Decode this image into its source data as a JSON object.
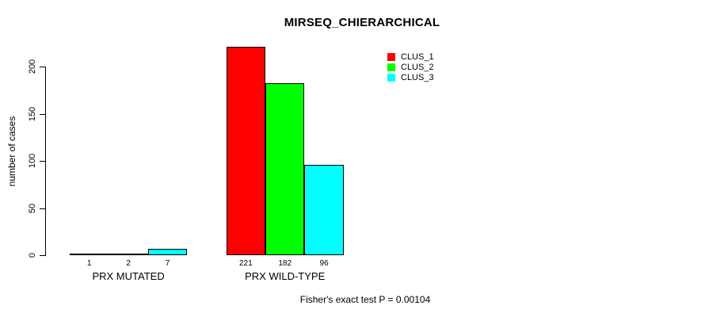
{
  "chart_data": {
    "type": "bar",
    "title": "MIRSEQ_CHIERARCHICAL",
    "xlabel": "",
    "ylabel": "number of cases",
    "categories": [
      "PRX MUTATED",
      "PRX WILD-TYPE"
    ],
    "series": [
      {
        "name": "CLUS_1",
        "color": "#ff0000",
        "values": [
          1,
          221
        ]
      },
      {
        "name": "CLUS_2",
        "color": "#00ff00",
        "values": [
          2,
          182
        ]
      },
      {
        "name": "CLUS_3",
        "color": "#00ffff",
        "values": [
          7,
          96
        ]
      }
    ],
    "yticks": [
      0,
      50,
      100,
      150,
      200
    ],
    "ylim": [
      0,
      230
    ],
    "grid": false,
    "legend_position": "top-right",
    "bar_value_labels": true,
    "annotation": "Fisher's exact test P = 0.00104",
    "colors": {
      "background": "#ffffff",
      "text": "#000000",
      "bar_border": "#000000"
    }
  }
}
